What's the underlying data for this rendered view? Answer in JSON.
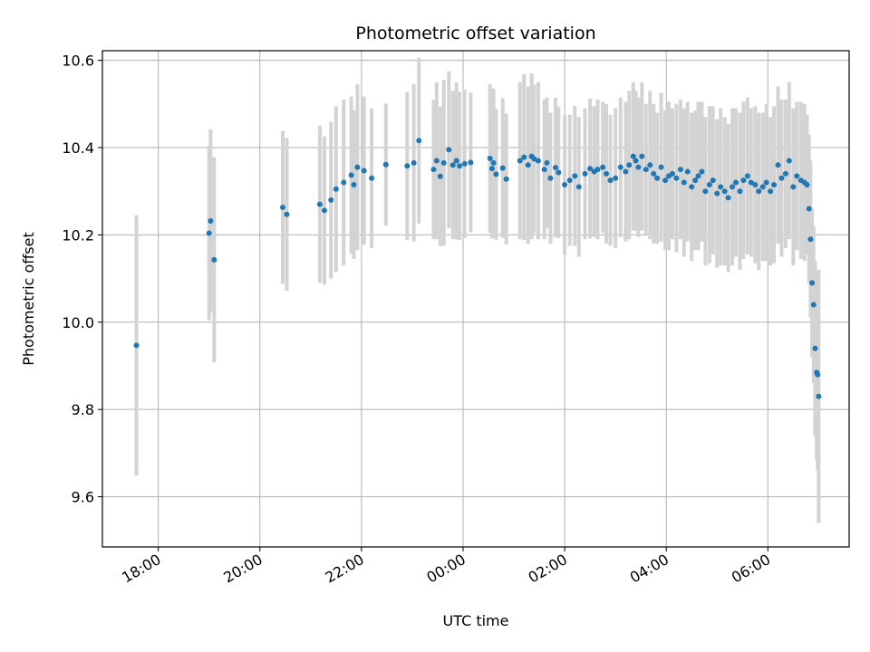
{
  "chart_data": {
    "type": "scatter",
    "title": "Photometric offset variation",
    "xlabel": "UTC time",
    "ylabel": "Photometric offset",
    "x_start_label": "17:00",
    "xlim_hours": [
      16.9,
      31.6
    ],
    "ylim": [
      9.485,
      10.622
    ],
    "grid": true,
    "y_ticks": [
      9.6,
      9.8,
      10.0,
      10.2,
      10.4,
      10.6
    ],
    "y_tick_labels": [
      "9.6",
      "9.8",
      "10.0",
      "10.2",
      "10.4",
      "10.6"
    ],
    "x_ticks_hours": [
      18,
      20,
      22,
      24,
      26,
      28,
      30
    ],
    "x_tick_labels": [
      "18:00",
      "20:00",
      "22:00",
      "00:00",
      "02:00",
      "04:00",
      "06:00"
    ],
    "colors": {
      "points": "#1f77b4",
      "errorbars": "#d3d3d3",
      "grid": "#b0b0b0"
    },
    "series": [
      {
        "x_hours": [
          17.57,
          19.0,
          19.03,
          19.1,
          20.45,
          20.53,
          21.18,
          21.27,
          21.4,
          21.5,
          21.65,
          21.8,
          21.85,
          21.92,
          22.05,
          22.2,
          22.48,
          22.9,
          23.03,
          23.13,
          23.42,
          23.48,
          23.55,
          23.62,
          23.72,
          23.8,
          23.87,
          23.93,
          24.03,
          24.15,
          24.53,
          24.57,
          24.6,
          24.65,
          24.78,
          24.85,
          25.12,
          25.2,
          25.28,
          25.35,
          25.4,
          25.48,
          25.6,
          25.65,
          25.72,
          25.82,
          25.88,
          26.0,
          26.1,
          26.2,
          26.28,
          26.4,
          26.5,
          26.58,
          26.65,
          26.75,
          26.82,
          26.9,
          27.0,
          27.1,
          27.2,
          27.27,
          27.35,
          27.4,
          27.45,
          27.52,
          27.6,
          27.68,
          27.75,
          27.82,
          27.9,
          27.98,
          28.05,
          28.12,
          28.2,
          28.28,
          28.35,
          28.42,
          28.5,
          28.57,
          28.63,
          28.7,
          28.77,
          28.85,
          28.92,
          29.0,
          29.07,
          29.15,
          29.22,
          29.3,
          29.37,
          29.45,
          29.52,
          29.6,
          29.67,
          29.75,
          29.82,
          29.9,
          29.97,
          30.05,
          30.12,
          30.2,
          30.27,
          30.35,
          30.42,
          30.5,
          30.57,
          30.65,
          30.72,
          30.77,
          30.81,
          30.84,
          30.87,
          30.9,
          30.93,
          30.96,
          30.98,
          31.0
        ],
        "y": [
          9.947,
          10.204,
          10.232,
          10.143,
          10.263,
          10.247,
          10.27,
          10.256,
          10.28,
          10.305,
          10.32,
          10.337,
          10.315,
          10.355,
          10.347,
          10.33,
          10.361,
          10.358,
          10.365,
          10.416,
          10.35,
          10.37,
          10.334,
          10.365,
          10.395,
          10.36,
          10.37,
          10.358,
          10.363,
          10.366,
          10.375,
          10.352,
          10.365,
          10.339,
          10.353,
          10.328,
          10.37,
          10.378,
          10.36,
          10.38,
          10.374,
          10.37,
          10.35,
          10.365,
          10.33,
          10.354,
          10.343,
          10.315,
          10.325,
          10.335,
          10.31,
          10.34,
          10.352,
          10.345,
          10.35,
          10.355,
          10.34,
          10.325,
          10.33,
          10.355,
          10.345,
          10.36,
          10.38,
          10.37,
          10.355,
          10.38,
          10.35,
          10.36,
          10.34,
          10.33,
          10.355,
          10.325,
          10.335,
          10.34,
          10.33,
          10.35,
          10.32,
          10.345,
          10.31,
          10.325,
          10.335,
          10.345,
          10.3,
          10.315,
          10.325,
          10.295,
          10.31,
          10.3,
          10.285,
          10.31,
          10.32,
          10.3,
          10.325,
          10.335,
          10.32,
          10.315,
          10.3,
          10.31,
          10.32,
          10.3,
          10.315,
          10.36,
          10.33,
          10.34,
          10.37,
          10.31,
          10.335,
          10.325,
          10.32,
          10.315,
          10.26,
          10.19,
          10.09,
          10.04,
          9.94,
          9.885,
          9.88,
          9.83
        ],
        "err": [
          0.298,
          0.2,
          0.21,
          0.235,
          0.175,
          0.175,
          0.18,
          0.17,
          0.18,
          0.19,
          0.19,
          0.18,
          0.17,
          0.19,
          0.17,
          0.16,
          0.14,
          0.17,
          0.18,
          0.19,
          0.16,
          0.18,
          0.16,
          0.19,
          0.18,
          0.17,
          0.18,
          0.17,
          0.17,
          0.16,
          0.17,
          0.16,
          0.17,
          0.15,
          0.16,
          0.15,
          0.18,
          0.19,
          0.18,
          0.19,
          0.17,
          0.18,
          0.16,
          0.15,
          0.15,
          0.16,
          0.15,
          0.16,
          0.15,
          0.16,
          0.16,
          0.15,
          0.16,
          0.15,
          0.16,
          0.15,
          0.16,
          0.15,
          0.16,
          0.16,
          0.16,
          0.17,
          0.17,
          0.16,
          0.16,
          0.17,
          0.15,
          0.17,
          0.16,
          0.15,
          0.17,
          0.16,
          0.17,
          0.15,
          0.17,
          0.16,
          0.17,
          0.16,
          0.17,
          0.16,
          0.17,
          0.16,
          0.17,
          0.18,
          0.17,
          0.17,
          0.18,
          0.17,
          0.17,
          0.18,
          0.17,
          0.18,
          0.18,
          0.18,
          0.17,
          0.18,
          0.18,
          0.17,
          0.18,
          0.17,
          0.18,
          0.18,
          0.18,
          0.17,
          0.18,
          0.18,
          0.17,
          0.18,
          0.18,
          0.16,
          0.17,
          0.18,
          0.17,
          0.18,
          0.2,
          0.2,
          0.22,
          0.29
        ]
      }
    ]
  }
}
